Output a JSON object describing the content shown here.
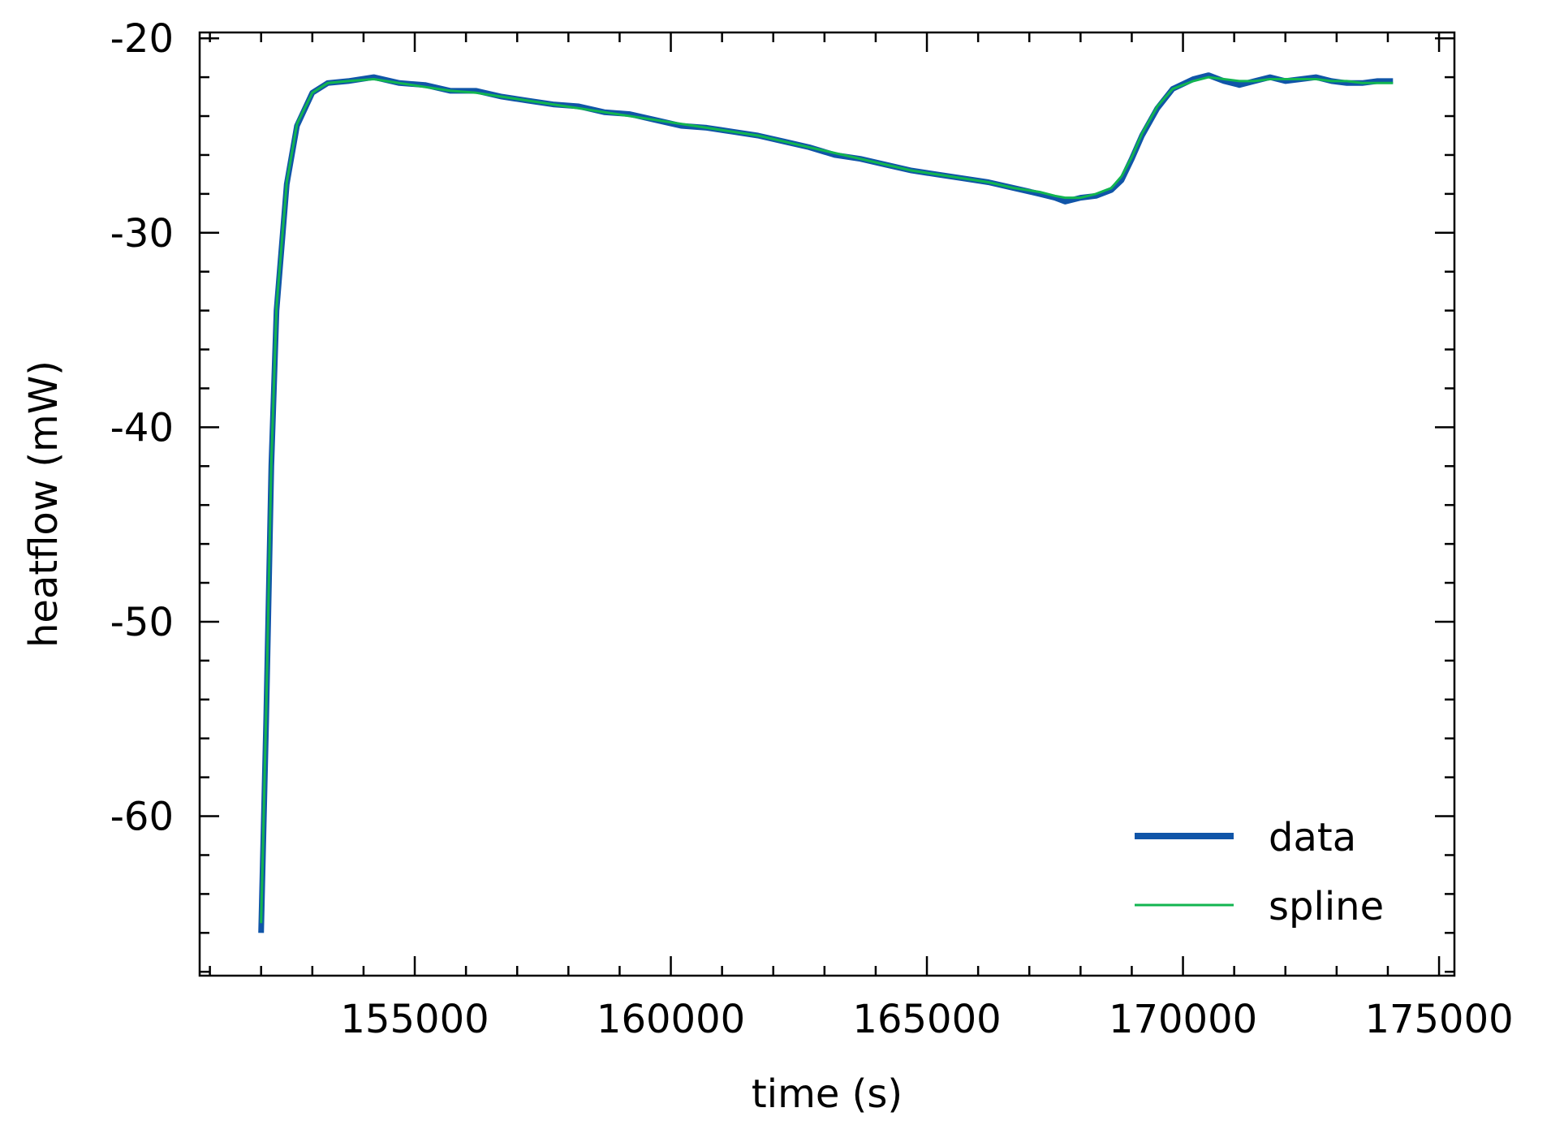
{
  "chart_data": {
    "type": "line",
    "title": "",
    "xlabel": "time (s)",
    "ylabel": "heatflow (mW)",
    "xlim": [
      150800,
      175300
    ],
    "ylim": [
      -68.2,
      -19.7
    ],
    "xticks": [
      155000,
      160000,
      165000,
      170000,
      175000
    ],
    "xtick_labels": [
      "155000",
      "160000",
      "165000",
      "170000",
      "175000"
    ],
    "x_minor_step": 1000,
    "yticks": [
      -60,
      -50,
      -40,
      -30,
      -20
    ],
    "ytick_labels": [
      "-60",
      "-50",
      "-40",
      "-30",
      "-20"
    ],
    "y_minor_step": 2,
    "grid": false,
    "legend_position": "bottom-right",
    "colors": {
      "data": "#1055a8",
      "spline": "#12b550"
    },
    "series": [
      {
        "name": "data",
        "x": [
          152000,
          152100,
          152200,
          152300,
          152500,
          152700,
          153000,
          153300,
          153700,
          154200,
          154700,
          155200,
          155700,
          156200,
          156700,
          157200,
          157700,
          158200,
          158700,
          159200,
          159700,
          160200,
          160700,
          161200,
          161700,
          162200,
          162700,
          163200,
          163700,
          164200,
          164700,
          165200,
          165700,
          166200,
          166700,
          167200,
          167500,
          167700,
          168000,
          168300,
          168600,
          168800,
          169000,
          169200,
          169500,
          169800,
          170200,
          170500,
          170800,
          171100,
          171400,
          171700,
          172000,
          172300,
          172600,
          172900,
          173200,
          173500,
          173800,
          174100
        ],
        "y": [
          -66.0,
          -55.0,
          -42.0,
          -34.0,
          -27.5,
          -24.5,
          -22.8,
          -22.3,
          -22.2,
          -22.0,
          -22.3,
          -22.4,
          -22.7,
          -22.7,
          -23.0,
          -23.2,
          -23.4,
          -23.5,
          -23.8,
          -23.9,
          -24.2,
          -24.5,
          -24.6,
          -24.8,
          -25.0,
          -25.3,
          -25.6,
          -26.0,
          -26.2,
          -26.5,
          -26.8,
          -27.0,
          -27.2,
          -27.4,
          -27.7,
          -28.0,
          -28.2,
          -28.4,
          -28.2,
          -28.1,
          -27.8,
          -27.3,
          -26.2,
          -25.0,
          -23.6,
          -22.6,
          -22.1,
          -21.9,
          -22.2,
          -22.4,
          -22.2,
          -22.0,
          -22.2,
          -22.1,
          -22.0,
          -22.2,
          -22.3,
          -22.3,
          -22.2,
          -22.2
        ]
      },
      {
        "name": "spline",
        "x": [
          152000,
          152100,
          152200,
          152300,
          152500,
          152700,
          153000,
          153300,
          153700,
          154200,
          154700,
          155200,
          155700,
          156200,
          156700,
          157200,
          157700,
          158200,
          158700,
          159200,
          159700,
          160200,
          160700,
          161200,
          161700,
          162200,
          162700,
          163200,
          163700,
          164200,
          164700,
          165200,
          165700,
          166200,
          166700,
          167200,
          167500,
          167700,
          168000,
          168300,
          168600,
          168800,
          169000,
          169200,
          169500,
          169800,
          170200,
          170500,
          170800,
          171100,
          171400,
          171700,
          172000,
          172300,
          172600,
          172900,
          173200,
          173500,
          173800,
          174100
        ],
        "y": [
          -65.5,
          -54.5,
          -41.8,
          -33.8,
          -27.4,
          -24.4,
          -22.8,
          -22.3,
          -22.2,
          -22.1,
          -22.3,
          -22.5,
          -22.7,
          -22.8,
          -23.0,
          -23.2,
          -23.4,
          -23.6,
          -23.8,
          -24.0,
          -24.2,
          -24.4,
          -24.6,
          -24.8,
          -25.0,
          -25.3,
          -25.6,
          -25.9,
          -26.2,
          -26.5,
          -26.8,
          -27.0,
          -27.2,
          -27.4,
          -27.7,
          -27.9,
          -28.1,
          -28.2,
          -28.2,
          -28.0,
          -27.7,
          -27.1,
          -26.1,
          -24.9,
          -23.5,
          -22.6,
          -22.2,
          -22.0,
          -22.1,
          -22.2,
          -22.2,
          -22.1,
          -22.1,
          -22.1,
          -22.1,
          -22.2,
          -22.2,
          -22.3,
          -22.3,
          -22.3
        ]
      }
    ]
  }
}
